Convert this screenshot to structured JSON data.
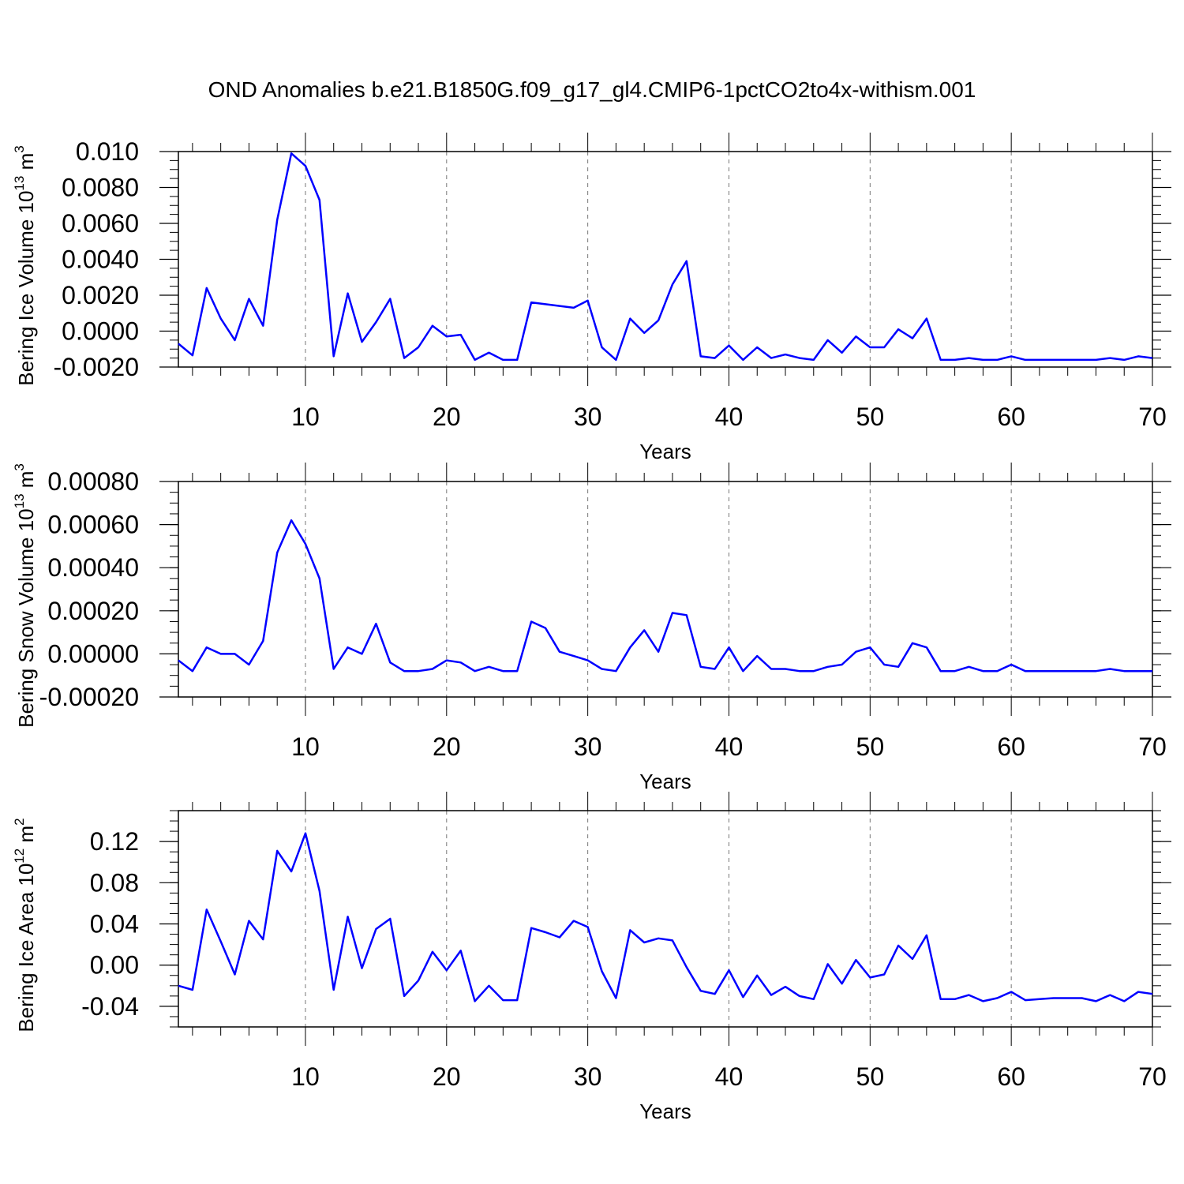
{
  "title": "OND Anomalies b.e21.B1850G.f09_g17_gl4.CMIP6-1pctCO2to4x-withism.001",
  "chart_data": [
    {
      "type": "line",
      "ylabel": "Bering Ice Volume 10",
      "ylabel_exp": "13",
      "ylabel_unit": " m",
      "ylabel_unit_exp": "3",
      "xlabel": "Years",
      "xlim": [
        1,
        70
      ],
      "ylim": [
        -0.002,
        0.01
      ],
      "x_ticks": [
        "10",
        "20",
        "30",
        "40",
        "50",
        "60",
        "70"
      ],
      "y_ticks": [
        "0.010",
        "0.0080",
        "0.0060",
        "0.0040",
        "0.0020",
        "0.0000",
        "-0.0020"
      ],
      "line_color": "#0000ff",
      "grid": "dashed vertical at x-ticks",
      "x": [
        1,
        2,
        3,
        4,
        5,
        6,
        7,
        8,
        9,
        10,
        11,
        12,
        13,
        14,
        15,
        16,
        17,
        18,
        19,
        20,
        21,
        22,
        23,
        24,
        25,
        26,
        27,
        28,
        29,
        30,
        31,
        32,
        33,
        34,
        35,
        36,
        37,
        38,
        39,
        40,
        41,
        42,
        43,
        44,
        45,
        46,
        47,
        48,
        49,
        50,
        51,
        52,
        53,
        54,
        55,
        56,
        57,
        58,
        59,
        60,
        61,
        62,
        63,
        64,
        65,
        66,
        67,
        68,
        69,
        70
      ],
      "values": [
        -0.0007,
        -0.00135,
        0.0024,
        0.0007,
        -0.0005,
        0.0018,
        0.0003,
        0.0062,
        0.0099,
        0.0092,
        0.0073,
        -0.0014,
        0.0021,
        -0.0006,
        0.0005,
        0.0018,
        -0.0015,
        -0.0009,
        0.0003,
        -0.0003,
        -0.0002,
        -0.0016,
        -0.0012,
        -0.0016,
        -0.0016,
        0.0016,
        0.0015,
        0.0014,
        0.0013,
        0.0017,
        -0.0009,
        -0.0016,
        0.0007,
        -0.0001,
        0.0006,
        0.0026,
        0.0039,
        -0.0014,
        -0.0015,
        -0.0008,
        -0.0016,
        -0.0009,
        -0.0015,
        -0.0013,
        -0.0015,
        -0.0016,
        -0.0005,
        -0.0012,
        -0.0003,
        -0.0009,
        -0.0009,
        0.0001,
        -0.0004,
        0.0007,
        -0.0016,
        -0.0016,
        -0.0015,
        -0.0016,
        -0.0016,
        -0.0014,
        -0.0016,
        -0.0016,
        -0.0016,
        -0.0016,
        -0.0016,
        -0.0016,
        -0.0015,
        -0.0016,
        -0.0014,
        -0.0015
      ]
    },
    {
      "type": "line",
      "ylabel": "Bering Snow Volume 10",
      "ylabel_exp": "13",
      "ylabel_unit": " m",
      "ylabel_unit_exp": "3",
      "xlabel": "Years",
      "xlim": [
        1,
        70
      ],
      "ylim": [
        -0.0002,
        0.0008
      ],
      "x_ticks": [
        "10",
        "20",
        "30",
        "40",
        "50",
        "60",
        "70"
      ],
      "y_ticks": [
        "0.00080",
        "0.00060",
        "0.00040",
        "0.00020",
        "0.00000",
        "-0.00020"
      ],
      "line_color": "#0000ff",
      "grid": "dashed vertical at x-ticks",
      "x": [
        1,
        2,
        3,
        4,
        5,
        6,
        7,
        8,
        9,
        10,
        11,
        12,
        13,
        14,
        15,
        16,
        17,
        18,
        19,
        20,
        21,
        22,
        23,
        24,
        25,
        26,
        27,
        28,
        29,
        30,
        31,
        32,
        33,
        34,
        35,
        36,
        37,
        38,
        39,
        40,
        41,
        42,
        43,
        44,
        45,
        46,
        47,
        48,
        49,
        50,
        51,
        52,
        53,
        54,
        55,
        56,
        57,
        58,
        59,
        60,
        61,
        62,
        63,
        64,
        65,
        66,
        67,
        68,
        69,
        70
      ],
      "values": [
        -3e-05,
        -8e-05,
        3e-05,
        0.0,
        0.0,
        -5e-05,
        6e-05,
        0.00047,
        0.00062,
        0.00051,
        0.00035,
        -7e-05,
        3e-05,
        0.0,
        0.00014,
        -4e-05,
        -8e-05,
        -8e-05,
        -7e-05,
        -3e-05,
        -4e-05,
        -8e-05,
        -6e-05,
        -8e-05,
        -8e-05,
        0.00015,
        0.00012,
        1e-05,
        -1e-05,
        -3e-05,
        -7e-05,
        -8e-05,
        3e-05,
        0.00011,
        1e-05,
        0.00019,
        0.00018,
        -6e-05,
        -7e-05,
        3e-05,
        -8e-05,
        -1e-05,
        -7e-05,
        -7e-05,
        -8e-05,
        -8e-05,
        -6e-05,
        -5e-05,
        1e-05,
        3e-05,
        -5e-05,
        -6e-05,
        5e-05,
        3e-05,
        -8e-05,
        -8e-05,
        -6e-05,
        -8e-05,
        -8e-05,
        -5e-05,
        -8e-05,
        -8e-05,
        -8e-05,
        -8e-05,
        -8e-05,
        -8e-05,
        -7e-05,
        -8e-05,
        -8e-05,
        -8e-05
      ]
    },
    {
      "type": "line",
      "ylabel": "Bering Ice Area 10",
      "ylabel_exp": "12",
      "ylabel_unit": " m",
      "ylabel_unit_exp": "2",
      "xlabel": "Years",
      "xlim": [
        1,
        70
      ],
      "ylim": [
        -0.06,
        0.15
      ],
      "x_ticks": [
        "10",
        "20",
        "30",
        "40",
        "50",
        "60",
        "70"
      ],
      "y_ticks": [
        "0.12",
        "0.08",
        "0.04",
        "0.00",
        "-0.04"
      ],
      "line_color": "#0000ff",
      "grid": "dashed vertical at x-ticks",
      "x": [
        1,
        2,
        3,
        4,
        5,
        6,
        7,
        8,
        9,
        10,
        11,
        12,
        13,
        14,
        15,
        16,
        17,
        18,
        19,
        20,
        21,
        22,
        23,
        24,
        25,
        26,
        27,
        28,
        29,
        30,
        31,
        32,
        33,
        34,
        35,
        36,
        37,
        38,
        39,
        40,
        41,
        42,
        43,
        44,
        45,
        46,
        47,
        48,
        49,
        50,
        51,
        52,
        53,
        54,
        55,
        56,
        57,
        58,
        59,
        60,
        61,
        62,
        63,
        64,
        65,
        66,
        67,
        68,
        69,
        70
      ],
      "values": [
        -0.02,
        -0.024,
        0.054,
        0.023,
        -0.009,
        0.043,
        0.025,
        0.111,
        0.091,
        0.128,
        0.072,
        -0.024,
        0.047,
        -0.003,
        0.035,
        0.045,
        -0.03,
        -0.015,
        0.013,
        -0.005,
        0.014,
        -0.035,
        -0.02,
        -0.034,
        -0.034,
        0.036,
        0.032,
        0.027,
        0.043,
        0.037,
        -0.006,
        -0.032,
        0.034,
        0.022,
        0.026,
        0.024,
        -0.002,
        -0.025,
        -0.028,
        -0.005,
        -0.031,
        -0.01,
        -0.029,
        -0.021,
        -0.03,
        -0.033,
        0.001,
        -0.018,
        0.005,
        -0.012,
        -0.009,
        0.019,
        0.006,
        0.029,
        -0.033,
        -0.033,
        -0.029,
        -0.035,
        -0.032,
        -0.026,
        -0.034,
        -0.033,
        -0.032,
        -0.032,
        -0.032,
        -0.035,
        -0.029,
        -0.035,
        -0.026,
        -0.028
      ]
    }
  ]
}
